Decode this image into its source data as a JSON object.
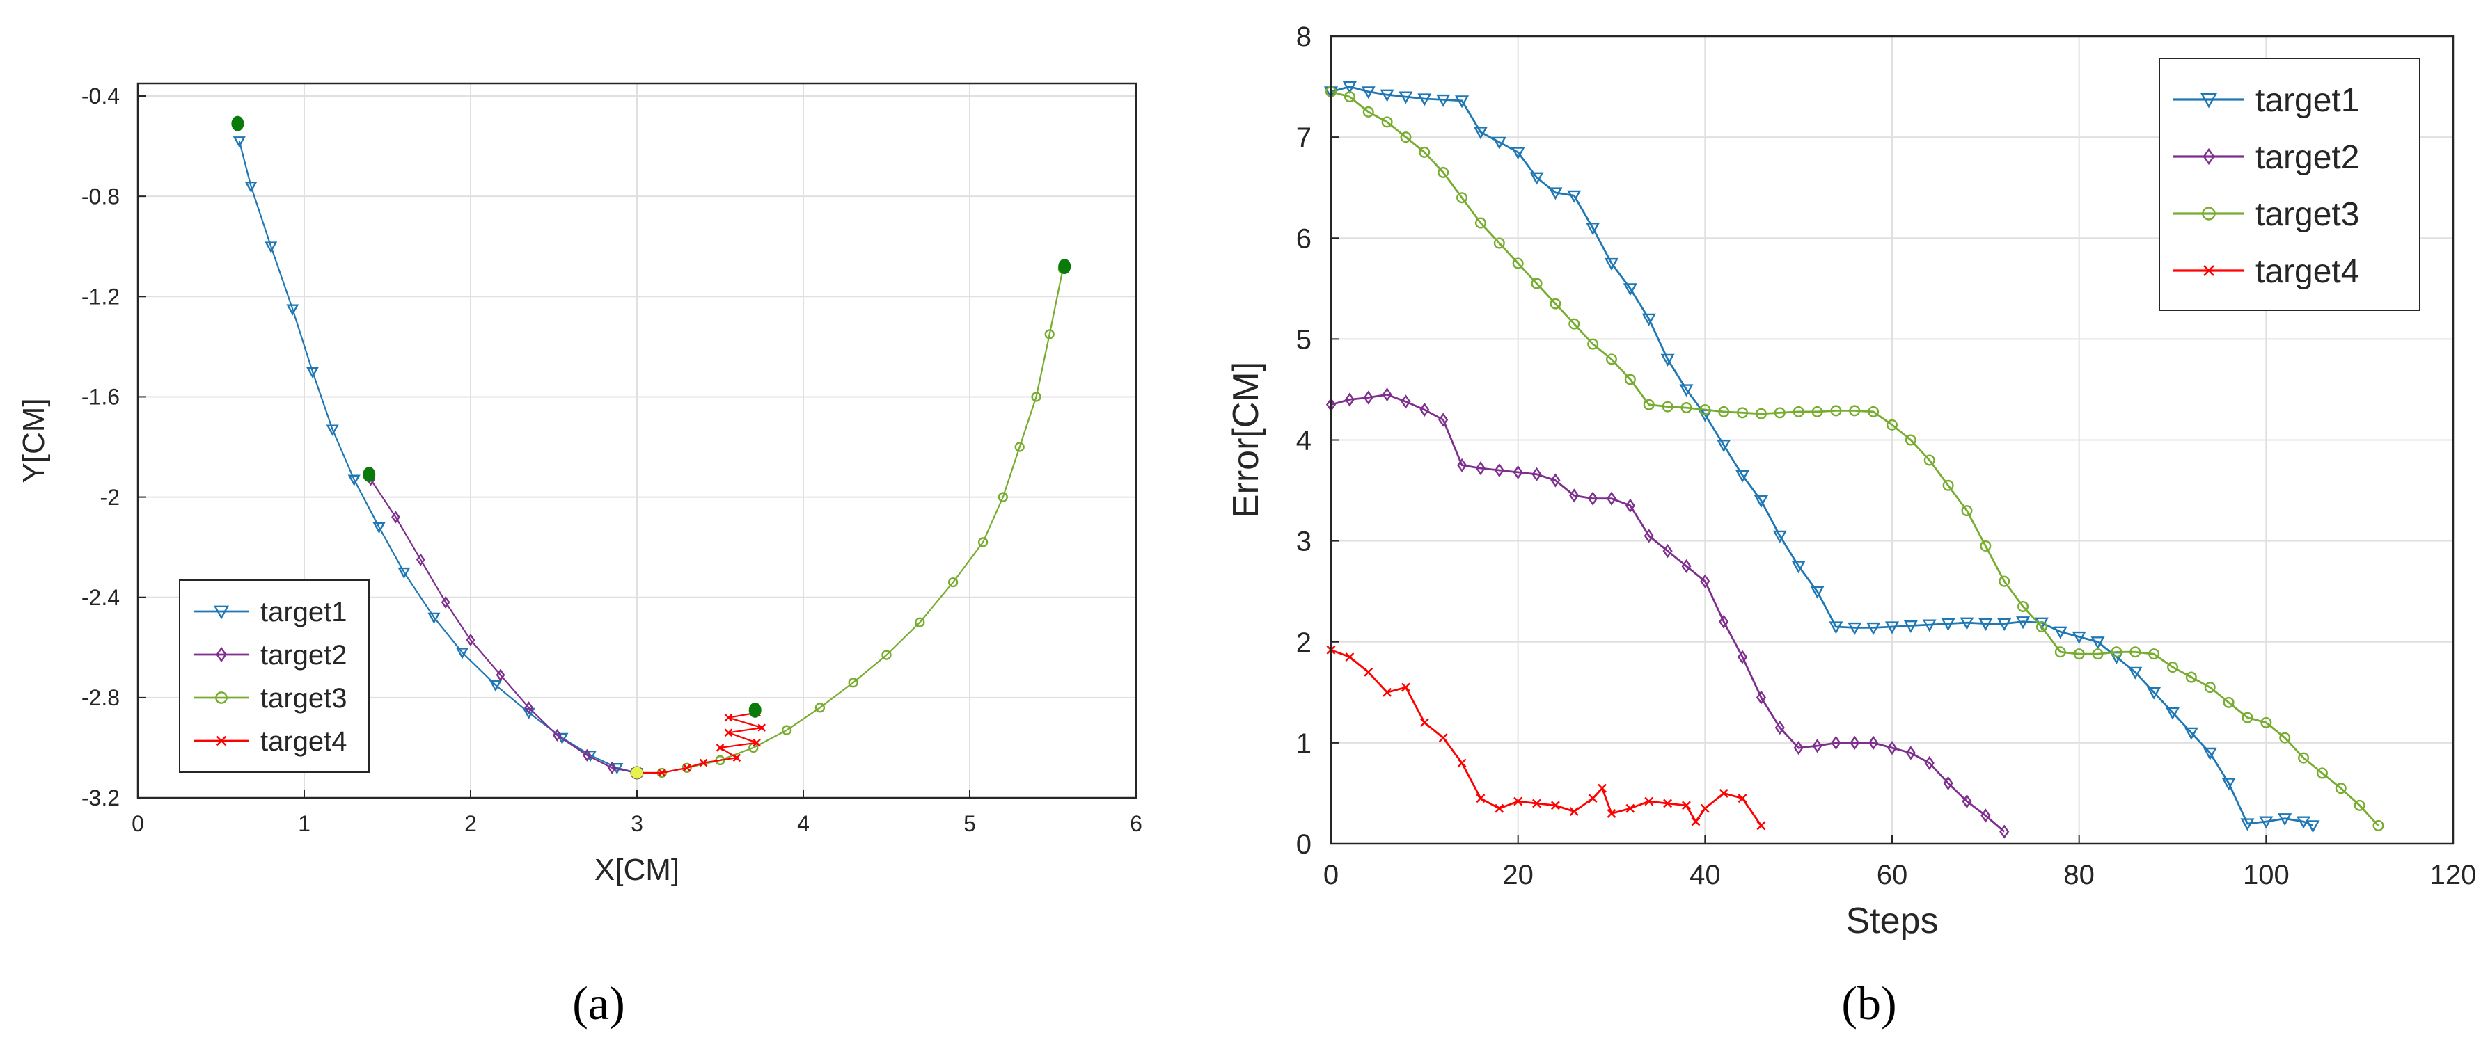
{
  "colors": {
    "target1": "#1f77b4",
    "target2": "#7e2f8e",
    "target3": "#77ac30",
    "target4": "#ff0000",
    "grid": "#e0e0e0",
    "start_marker": "#0a7a0a",
    "end_marker": "#e8f04a"
  },
  "chart_data": [
    {
      "type": "line",
      "caption": "(a)",
      "xlabel": "X[CM]",
      "ylabel": "Y[CM]",
      "xlim": [
        0,
        6
      ],
      "ylim": [
        -3.2,
        -0.35
      ],
      "xticks": [
        0,
        1,
        2,
        3,
        4,
        5,
        6
      ],
      "xtick_labels": [
        "0",
        "1",
        "2",
        "3",
        "4",
        "5",
        "6"
      ],
      "yticks": [
        -3.2,
        -2.8,
        -2.4,
        -2.0,
        -1.6,
        -1.2,
        -0.8,
        -0.4
      ],
      "ytick_labels": [
        "-3.2",
        "-2.8",
        "-2.4",
        "-2",
        "-1.6",
        "-1.2",
        "-0.8",
        "-0.4"
      ],
      "grid": true,
      "legend": "bottom-left",
      "series": [
        {
          "name": "target1",
          "marker": "triangle-down",
          "points": [
            [
              0.61,
              -0.58
            ],
            [
              0.68,
              -0.76
            ],
            [
              0.8,
              -1.0
            ],
            [
              0.93,
              -1.25
            ],
            [
              1.05,
              -1.5
            ],
            [
              1.17,
              -1.73
            ],
            [
              1.3,
              -1.93
            ],
            [
              1.45,
              -2.12
            ],
            [
              1.6,
              -2.3
            ],
            [
              1.78,
              -2.48
            ],
            [
              1.95,
              -2.62
            ],
            [
              2.15,
              -2.75
            ],
            [
              2.35,
              -2.86
            ],
            [
              2.55,
              -2.96
            ],
            [
              2.72,
              -3.03
            ],
            [
              2.88,
              -3.08
            ],
            [
              3.0,
              -3.1
            ]
          ]
        },
        {
          "name": "target2",
          "marker": "diamond",
          "points": [
            [
              1.4,
              -1.93
            ],
            [
              1.55,
              -2.08
            ],
            [
              1.7,
              -2.25
            ],
            [
              1.85,
              -2.42
            ],
            [
              2.0,
              -2.57
            ],
            [
              2.18,
              -2.71
            ],
            [
              2.35,
              -2.84
            ],
            [
              2.52,
              -2.95
            ],
            [
              2.7,
              -3.03
            ],
            [
              2.85,
              -3.08
            ],
            [
              3.0,
              -3.1
            ]
          ]
        },
        {
          "name": "target3",
          "marker": "circle",
          "points": [
            [
              5.56,
              -1.09
            ],
            [
              5.48,
              -1.35
            ],
            [
              5.4,
              -1.6
            ],
            [
              5.3,
              -1.8
            ],
            [
              5.2,
              -2.0
            ],
            [
              5.08,
              -2.18
            ],
            [
              4.9,
              -2.34
            ],
            [
              4.7,
              -2.5
            ],
            [
              4.5,
              -2.63
            ],
            [
              4.3,
              -2.74
            ],
            [
              4.1,
              -2.84
            ],
            [
              3.9,
              -2.93
            ],
            [
              3.7,
              -3.0
            ],
            [
              3.5,
              -3.05
            ],
            [
              3.3,
              -3.08
            ],
            [
              3.15,
              -3.1
            ],
            [
              3.0,
              -3.1
            ]
          ]
        },
        {
          "name": "target4",
          "marker": "x",
          "points": [
            [
              3.72,
              -2.86
            ],
            [
              3.55,
              -2.88
            ],
            [
              3.75,
              -2.92
            ],
            [
              3.55,
              -2.94
            ],
            [
              3.72,
              -2.98
            ],
            [
              3.5,
              -3.0
            ],
            [
              3.6,
              -3.04
            ],
            [
              3.4,
              -3.06
            ],
            [
              3.3,
              -3.08
            ],
            [
              3.15,
              -3.1
            ],
            [
              3.0,
              -3.1
            ]
          ]
        }
      ],
      "start_points": [
        [
          0.6,
          -0.51
        ],
        [
          1.39,
          -1.91
        ],
        [
          5.57,
          -1.08
        ],
        [
          3.71,
          -2.85
        ]
      ],
      "end_point": [
        3.0,
        -3.1
      ]
    },
    {
      "type": "line",
      "caption": "(b)",
      "xlabel": "Steps",
      "ylabel": "Error[CM]",
      "xlim": [
        0,
        120
      ],
      "ylim": [
        0,
        8
      ],
      "xticks": [
        0,
        20,
        40,
        60,
        80,
        100,
        120
      ],
      "xtick_labels": [
        "0",
        "20",
        "40",
        "60",
        "80",
        "100",
        "120"
      ],
      "yticks": [
        0,
        1,
        2,
        3,
        4,
        5,
        6,
        7,
        8
      ],
      "ytick_labels": [
        "0",
        "1",
        "2",
        "3",
        "4",
        "5",
        "6",
        "7",
        "8"
      ],
      "grid": true,
      "legend": "top-right",
      "series": [
        {
          "name": "target1",
          "marker": "triangle-down",
          "x": [
            0,
            2,
            4,
            6,
            8,
            10,
            12,
            14,
            16,
            18,
            20,
            22,
            24,
            26,
            28,
            30,
            32,
            34,
            36,
            38,
            40,
            42,
            44,
            46,
            48,
            50,
            52,
            54,
            56,
            58,
            60,
            62,
            64,
            66,
            68,
            70,
            72,
            74,
            76,
            78,
            80,
            82,
            84,
            86,
            88,
            90,
            92,
            94,
            96,
            98,
            100,
            102,
            104,
            105
          ],
          "y": [
            7.45,
            7.5,
            7.45,
            7.42,
            7.4,
            7.38,
            7.37,
            7.36,
            7.05,
            6.95,
            6.85,
            6.6,
            6.45,
            6.42,
            6.1,
            5.75,
            5.5,
            5.2,
            4.8,
            4.5,
            4.25,
            3.95,
            3.65,
            3.4,
            3.05,
            2.75,
            2.5,
            2.15,
            2.14,
            2.14,
            2.15,
            2.16,
            2.17,
            2.18,
            2.19,
            2.18,
            2.18,
            2.2,
            2.19,
            2.1,
            2.05,
            2.0,
            1.85,
            1.7,
            1.5,
            1.3,
            1.1,
            0.9,
            0.6,
            0.2,
            0.22,
            0.25,
            0.22,
            0.18
          ]
        },
        {
          "name": "target2",
          "marker": "diamond",
          "x": [
            0,
            2,
            4,
            6,
            8,
            10,
            12,
            14,
            16,
            18,
            20,
            22,
            24,
            26,
            28,
            30,
            32,
            34,
            36,
            38,
            40,
            42,
            44,
            46,
            48,
            50,
            52,
            54,
            56,
            58,
            60,
            62,
            64,
            66,
            68,
            70,
            72
          ],
          "y": [
            4.35,
            4.4,
            4.42,
            4.45,
            4.38,
            4.3,
            4.2,
            3.75,
            3.72,
            3.7,
            3.68,
            3.66,
            3.6,
            3.45,
            3.42,
            3.42,
            3.35,
            3.05,
            2.9,
            2.75,
            2.6,
            2.2,
            1.85,
            1.45,
            1.15,
            0.95,
            0.97,
            1.0,
            1.0,
            1.0,
            0.95,
            0.9,
            0.8,
            0.6,
            0.42,
            0.28,
            0.12
          ]
        },
        {
          "name": "target3",
          "marker": "circle",
          "x": [
            0,
            2,
            4,
            6,
            8,
            10,
            12,
            14,
            16,
            18,
            20,
            22,
            24,
            26,
            28,
            30,
            32,
            34,
            36,
            38,
            40,
            42,
            44,
            46,
            48,
            50,
            52,
            54,
            56,
            58,
            60,
            62,
            64,
            66,
            68,
            70,
            72,
            74,
            76,
            78,
            80,
            82,
            84,
            86,
            88,
            90,
            92,
            94,
            96,
            98,
            100,
            102,
            104,
            106,
            108,
            110,
            112
          ],
          "y": [
            7.45,
            7.4,
            7.25,
            7.15,
            7.0,
            6.85,
            6.65,
            6.4,
            6.15,
            5.95,
            5.75,
            5.55,
            5.35,
            5.15,
            4.95,
            4.8,
            4.6,
            4.35,
            4.33,
            4.32,
            4.3,
            4.28,
            4.27,
            4.26,
            4.27,
            4.28,
            4.28,
            4.29,
            4.29,
            4.28,
            4.15,
            4.0,
            3.8,
            3.55,
            3.3,
            2.95,
            2.6,
            2.35,
            2.15,
            1.9,
            1.88,
            1.88,
            1.9,
            1.9,
            1.88,
            1.75,
            1.65,
            1.55,
            1.4,
            1.25,
            1.2,
            1.05,
            0.85,
            0.7,
            0.55,
            0.38,
            0.18
          ]
        },
        {
          "name": "target4",
          "marker": "x",
          "x": [
            0,
            2,
            4,
            6,
            8,
            10,
            12,
            14,
            16,
            18,
            20,
            22,
            24,
            26,
            28,
            29,
            30,
            32,
            34,
            36,
            38,
            39,
            40,
            42,
            44,
            46
          ],
          "y": [
            1.92,
            1.85,
            1.7,
            1.5,
            1.55,
            1.2,
            1.05,
            0.8,
            0.45,
            0.35,
            0.42,
            0.4,
            0.38,
            0.32,
            0.45,
            0.55,
            0.3,
            0.35,
            0.42,
            0.4,
            0.38,
            0.22,
            0.35,
            0.5,
            0.45,
            0.18
          ]
        }
      ]
    }
  ]
}
